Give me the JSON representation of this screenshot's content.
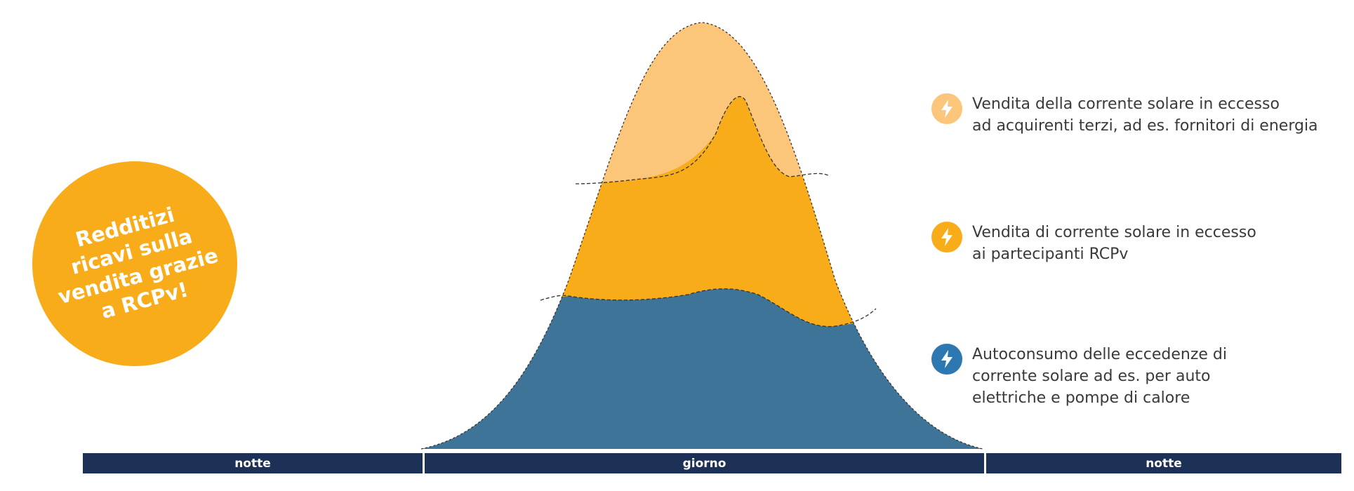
{
  "badge": {
    "lines": [
      "Redditizi",
      "ricavi sulla",
      "vendita grazie",
      "a RCPv!"
    ],
    "color": "#f9ac1a"
  },
  "legend": [
    {
      "icon": "lightning-icon",
      "icon_color": "#fcc67a",
      "lines": [
        "Vendita della corrente solare in eccesso",
        "ad acquirenti terzi, ad es. fornitori di energia"
      ]
    },
    {
      "icon": "lightning-icon",
      "icon_color": "#f9ac1a",
      "lines": [
        "Vendita di corrente solare in eccesso",
        "ai partecipanti RCPv"
      ]
    },
    {
      "icon": "lightning-icon",
      "icon_color": "#2d78b0",
      "lines": [
        "Autoconsumo delle eccedenze di",
        "corrente solare ad es. per auto",
        "elettriche e pompe di calore"
      ]
    }
  ],
  "timeline": {
    "segments": [
      "notte",
      "giorno",
      "notte"
    ],
    "color": "#1c3155"
  },
  "areas": {
    "top_color": "#fcc67a",
    "middle_color": "#f9ac1a",
    "bottom_color": "#3f7499"
  }
}
